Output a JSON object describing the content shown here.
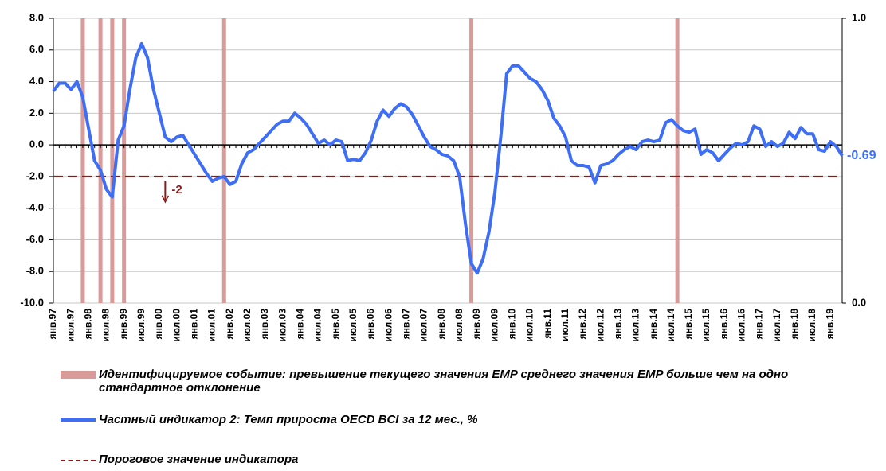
{
  "chart_data": {
    "type": "line",
    "categories": [
      "янв.97",
      null,
      null,
      "июл.97",
      null,
      null,
      "янв.98",
      null,
      null,
      "июл.98",
      null,
      null,
      "янв.99",
      null,
      null,
      "июл.99",
      null,
      null,
      "янв.00",
      null,
      null,
      "июл.00",
      null,
      null,
      "янв.01",
      null,
      null,
      "июл.01",
      null,
      null,
      "янв.02",
      null,
      null,
      "июл.02",
      null,
      null,
      "янв.03",
      null,
      null,
      "июл.03",
      null,
      null,
      "янв.04",
      null,
      null,
      "июл.04",
      null,
      null,
      "янв.05",
      null,
      null,
      "июл.05",
      null,
      null,
      "янв.06",
      null,
      null,
      "июл.06",
      null,
      null,
      "янв.07",
      null,
      null,
      "июл.07",
      null,
      null,
      "янв.08",
      null,
      null,
      "июл.08",
      null,
      null,
      "янв.09",
      null,
      null,
      "июл.09",
      null,
      null,
      "янв.10",
      null,
      null,
      "июл.10",
      null,
      null,
      "янв.11",
      null,
      null,
      "июл.11",
      null,
      null,
      "янв.12",
      null,
      null,
      "июл.12",
      null,
      null,
      "янв.13",
      null,
      null,
      "июл.13",
      null,
      null,
      "янв.14",
      null,
      null,
      "июл.14",
      null,
      null,
      "янв.15",
      null,
      null,
      "июл.15",
      null,
      null,
      "янв.16",
      null,
      null,
      "июл.16",
      null,
      null,
      "янв.17",
      null,
      null,
      "июл.17",
      null,
      null,
      "янв.18",
      null,
      null,
      "июл.18",
      null,
      null,
      "янв.19",
      null,
      null
    ],
    "series": [
      {
        "name": "Идентифицируемое событие: превышение текущего значения EMP среднего значения EMP больше чем на одно стандартное отклонение",
        "type": "bar",
        "axis": "y2",
        "color": "#d99a9a",
        "values": [
          0,
          0,
          0,
          0,
          0,
          1,
          0,
          0,
          1,
          0,
          1,
          0,
          1,
          0,
          0,
          0,
          0,
          0,
          0,
          0,
          0,
          0,
          0,
          0,
          0,
          0,
          0,
          0,
          0,
          1,
          0,
          0,
          0,
          0,
          0,
          0,
          0,
          0,
          0,
          0,
          0,
          0,
          0,
          0,
          0,
          0,
          0,
          0,
          0,
          0,
          0,
          0,
          0,
          0,
          0,
          0,
          0,
          0,
          0,
          0,
          0,
          0,
          0,
          0,
          0,
          0,
          0,
          0,
          0,
          0,
          0,
          1,
          0,
          0,
          0,
          0,
          0,
          0,
          0,
          0,
          0,
          0,
          0,
          0,
          0,
          0,
          0,
          0,
          0,
          0,
          0,
          0,
          0,
          0,
          0,
          0,
          0,
          0,
          0,
          0,
          0,
          0,
          0,
          0,
          0,
          0,
          1,
          0,
          0,
          0,
          0,
          0,
          0,
          0,
          0,
          0,
          0,
          0,
          0,
          0,
          0,
          0,
          0,
          0,
          0,
          0,
          0,
          0,
          0,
          0,
          0,
          0,
          0,
          0,
          0
        ]
      },
      {
        "name": "Частный индикатор 2: Темп прироста OECD BCI за 12 мес., %",
        "type": "line",
        "color": "#3d6ef5",
        "values": [
          3.4,
          3.9,
          3.9,
          3.5,
          4.0,
          3.0,
          1.0,
          -1.0,
          -1.6,
          -2.8,
          -3.3,
          0.3,
          1.2,
          3.5,
          5.5,
          6.4,
          5.5,
          3.5,
          2.0,
          0.5,
          0.2,
          0.5,
          0.6,
          0.0,
          -0.6,
          -1.2,
          -1.8,
          -2.3,
          -2.1,
          -2.0,
          -2.5,
          -2.3,
          -1.2,
          -0.5,
          -0.3,
          0.1,
          0.5,
          0.9,
          1.3,
          1.5,
          1.5,
          2.0,
          1.7,
          1.3,
          0.7,
          0.1,
          0.3,
          0.0,
          0.3,
          0.2,
          -1.0,
          -0.9,
          -1.0,
          -0.5,
          0.3,
          1.5,
          2.2,
          1.8,
          2.3,
          2.6,
          2.4,
          1.9,
          1.2,
          0.5,
          -0.1,
          -0.3,
          -0.6,
          -0.7,
          -1.0,
          -2.0,
          -5.0,
          -7.5,
          -8.1,
          -7.2,
          -5.5,
          -3.0,
          0.5,
          4.5,
          5.0,
          5.0,
          4.6,
          4.2,
          4.0,
          3.5,
          2.8,
          1.7,
          1.2,
          0.5,
          -1.0,
          -1.3,
          -1.3,
          -1.4,
          -2.4,
          -1.3,
          -1.2,
          -1.0,
          -0.6,
          -0.3,
          -0.1,
          -0.3,
          0.2,
          0.3,
          0.2,
          0.3,
          1.4,
          1.6,
          1.2,
          0.9,
          0.8,
          1.0,
          -0.6,
          -0.3,
          -0.5,
          -1.0,
          -0.6,
          -0.2,
          0.1,
          0.0,
          0.2,
          1.2,
          1.0,
          -0.1,
          0.2,
          -0.1,
          0.1,
          0.8,
          0.4,
          1.1,
          0.7,
          0.7,
          -0.3,
          -0.4,
          0.2,
          -0.1,
          -0.69
        ]
      }
    ],
    "threshold": {
      "name": "Пороговое значение индикатора",
      "value": -2,
      "color": "#8b1a1a"
    },
    "ylim": [
      -10,
      8
    ],
    "yticks": [
      {
        "value": -10,
        "label": "-10.0"
      },
      {
        "value": -8,
        "label": "-8.0"
      },
      {
        "value": -6,
        "label": "-6.0"
      },
      {
        "value": -4,
        "label": "-4.0"
      },
      {
        "value": -2,
        "label": "-2.0"
      },
      {
        "value": 0,
        "label": "0.0"
      },
      {
        "value": 2,
        "label": "2.0"
      },
      {
        "value": 4,
        "label": "4.0"
      },
      {
        "value": 6,
        "label": "6.0"
      },
      {
        "value": 8,
        "label": "8.0"
      }
    ],
    "y2lim": [
      0,
      1
    ],
    "y2ticks": [
      {
        "value": 0,
        "label": "0.0"
      },
      {
        "value": 1,
        "label": "1.0"
      }
    ],
    "grid": true
  }
}
